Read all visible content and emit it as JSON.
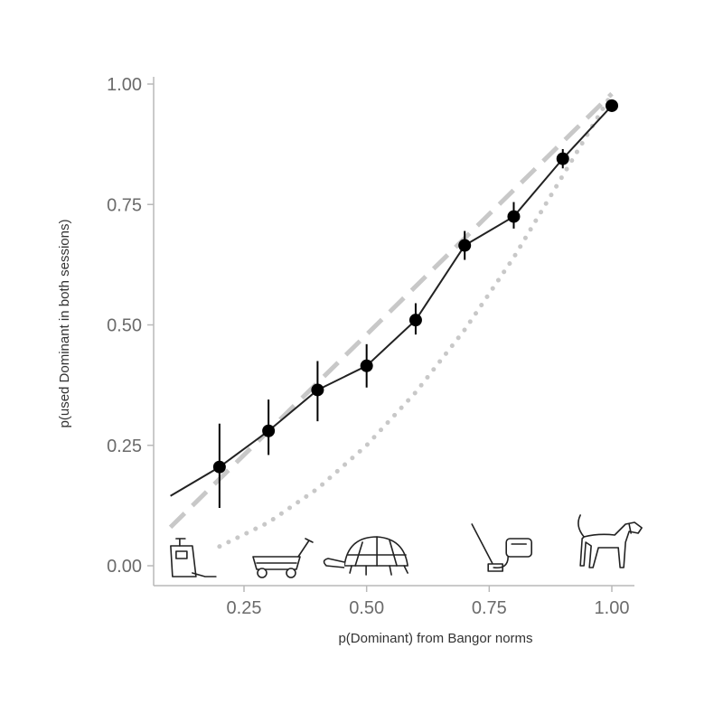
{
  "chart_data": {
    "type": "line",
    "xlabel": "p(Dominant) from Bangor norms",
    "ylabel": "p(used Dominant in both sessions)",
    "xlim": [
      0.05,
      1.05
    ],
    "ylim": [
      -0.04,
      1.02
    ],
    "x_ticks": [
      "0.25",
      "0.50",
      "0.75",
      "1.00"
    ],
    "x_tick_values": [
      0.25,
      0.5,
      0.75,
      1.0
    ],
    "y_ticks": [
      "0.00",
      "0.25",
      "0.50",
      "0.75",
      "1.00"
    ],
    "y_tick_values": [
      0.0,
      0.25,
      0.5,
      0.75,
      1.0
    ],
    "grid": false,
    "legend": "none",
    "series": [
      {
        "style": "solid-black-line-with-points-and-error-bars",
        "color": "#000000",
        "x": [
          0.2,
          0.3,
          0.4,
          0.5,
          0.6,
          0.7,
          0.8,
          0.9,
          1.0
        ],
        "values": [
          0.205,
          0.28,
          0.365,
          0.415,
          0.51,
          0.665,
          0.725,
          0.845,
          0.955
        ],
        "error_low": [
          0.12,
          0.23,
          0.3,
          0.37,
          0.48,
          0.635,
          0.7,
          0.825,
          0.945
        ],
        "error_high": [
          0.295,
          0.345,
          0.425,
          0.46,
          0.545,
          0.695,
          0.755,
          0.865,
          0.965
        ],
        "line_from": [
          0.1,
          0.145
        ]
      },
      {
        "style": "dashed-gray",
        "color": "#c8c8c8",
        "x": [
          0.1,
          1.0
        ],
        "values": [
          0.08,
          0.98
        ]
      },
      {
        "style": "dotted-gray",
        "color": "#c8c8c8",
        "x": [
          0.2,
          0.3,
          0.4,
          0.5,
          0.6,
          0.7,
          0.8,
          0.9,
          1.0
        ],
        "values": [
          0.04,
          0.09,
          0.16,
          0.25,
          0.36,
          0.49,
          0.64,
          0.81,
          0.98
        ]
      }
    ],
    "pictures": [
      {
        "name": "can-opener-picture",
        "x": 0.13
      },
      {
        "name": "wagon-picture",
        "x": 0.32
      },
      {
        "name": "tortoise-picture",
        "x": 0.51
      },
      {
        "name": "vacuum-picture",
        "x": 0.77
      },
      {
        "name": "dog-picture",
        "x": 0.98
      }
    ]
  }
}
